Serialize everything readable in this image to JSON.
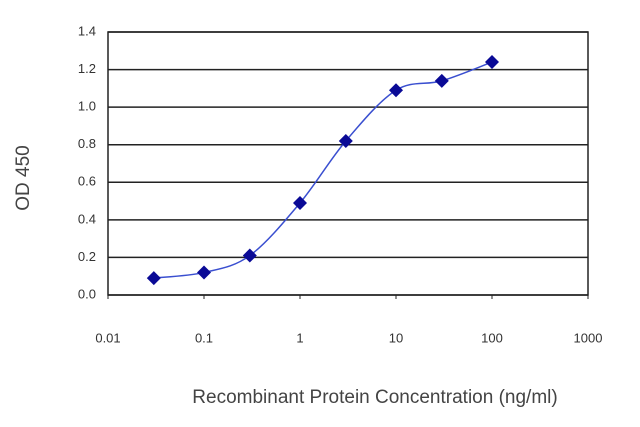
{
  "chart_data": {
    "type": "line",
    "x_label": "Recombinant Protein Concentration (ng/ml)",
    "y_label": "OD 450",
    "x": [
      0.03,
      0.1,
      0.3,
      1,
      3,
      10,
      30,
      100
    ],
    "values": [
      0.09,
      0.12,
      0.21,
      0.49,
      0.82,
      1.09,
      1.14,
      1.24
    ],
    "line_color": "#3a4fd0",
    "marker_color": "#0a0a96",
    "marker": "diamond",
    "smooth": true,
    "x_log": true,
    "xlim": [
      0.01,
      1000
    ],
    "xticks": [
      0.01,
      0.1,
      1,
      10,
      100,
      1000
    ],
    "ylim": [
      0,
      1.4
    ],
    "yticks": [
      {
        "value": 0,
        "label": "0.0"
      },
      {
        "value": 0.2,
        "label": "0.2"
      },
      {
        "value": 0.4,
        "label": "0.4"
      },
      {
        "value": 0.6,
        "label": "0.6"
      },
      {
        "value": 0.8,
        "label": "0.8"
      },
      {
        "value": 1,
        "label": "1.0"
      },
      {
        "value": 1.2,
        "label": "1.2"
      },
      {
        "value": 1.4,
        "label": "1.4"
      }
    ],
    "grid": true
  }
}
